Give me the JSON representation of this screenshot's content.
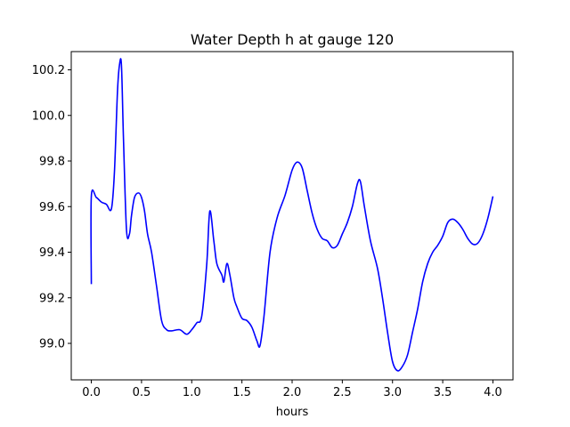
{
  "chart_data": {
    "type": "line",
    "title": "Water Depth h at gauge 120",
    "xlabel": "hours",
    "ylabel": "",
    "xlim": [
      -0.2,
      4.2
    ],
    "ylim": [
      98.84,
      100.28
    ],
    "x_ticks": [
      0.0,
      0.5,
      1.0,
      1.5,
      2.0,
      2.5,
      3.0,
      3.5,
      4.0
    ],
    "x_tick_labels": [
      "0.0",
      "0.5",
      "1.0",
      "1.5",
      "2.0",
      "2.5",
      "3.0",
      "3.5",
      "4.0"
    ],
    "y_ticks": [
      99.0,
      99.2,
      99.4,
      99.6,
      99.8,
      100.0,
      100.2
    ],
    "y_tick_labels": [
      "99.0",
      "99.2",
      "99.4",
      "99.6",
      "99.8",
      "100.0",
      "100.2"
    ],
    "grid": false,
    "series": [
      {
        "color": "#0000ff",
        "x": [
          0.0,
          0.0,
          0.05,
          0.1,
          0.15,
          0.2,
          0.23,
          0.26,
          0.28,
          0.3,
          0.32,
          0.35,
          0.38,
          0.4,
          0.43,
          0.47,
          0.5,
          0.53,
          0.56,
          0.6,
          0.65,
          0.7,
          0.75,
          0.8,
          0.88,
          0.95,
          1.0,
          1.05,
          1.1,
          1.15,
          1.18,
          1.22,
          1.25,
          1.3,
          1.32,
          1.35,
          1.38,
          1.42,
          1.45,
          1.5,
          1.55,
          1.6,
          1.65,
          1.68,
          1.72,
          1.78,
          1.85,
          1.93,
          2.0,
          2.05,
          2.1,
          2.15,
          2.2,
          2.25,
          2.3,
          2.35,
          2.4,
          2.45,
          2.5,
          2.55,
          2.6,
          2.65,
          2.68,
          2.72,
          2.78,
          2.85,
          2.9,
          2.95,
          3.0,
          3.05,
          3.1,
          3.15,
          3.2,
          3.25,
          3.3,
          3.35,
          3.4,
          3.45,
          3.5,
          3.55,
          3.6,
          3.65,
          3.7,
          3.75,
          3.8,
          3.85,
          3.9,
          3.95,
          4.0
        ],
        "y": [
          99.26,
          99.645,
          99.64,
          99.62,
          99.61,
          99.59,
          99.75,
          100.1,
          100.22,
          100.22,
          99.9,
          99.5,
          99.48,
          99.56,
          99.64,
          99.66,
          99.64,
          99.58,
          99.48,
          99.4,
          99.25,
          99.1,
          99.06,
          99.055,
          99.06,
          99.04,
          99.06,
          99.09,
          99.12,
          99.35,
          99.58,
          99.45,
          99.35,
          99.3,
          99.27,
          99.35,
          99.3,
          99.2,
          99.16,
          99.11,
          99.1,
          99.07,
          99.01,
          98.99,
          99.12,
          99.4,
          99.55,
          99.65,
          99.76,
          99.795,
          99.77,
          99.67,
          99.57,
          99.5,
          99.46,
          99.45,
          99.42,
          99.43,
          99.48,
          99.53,
          99.6,
          99.7,
          99.71,
          99.6,
          99.45,
          99.33,
          99.2,
          99.05,
          98.92,
          98.88,
          98.9,
          98.95,
          99.05,
          99.15,
          99.27,
          99.35,
          99.4,
          99.43,
          99.47,
          99.53,
          99.545,
          99.53,
          99.5,
          99.46,
          99.435,
          99.44,
          99.48,
          99.55,
          99.645
        ]
      }
    ]
  }
}
